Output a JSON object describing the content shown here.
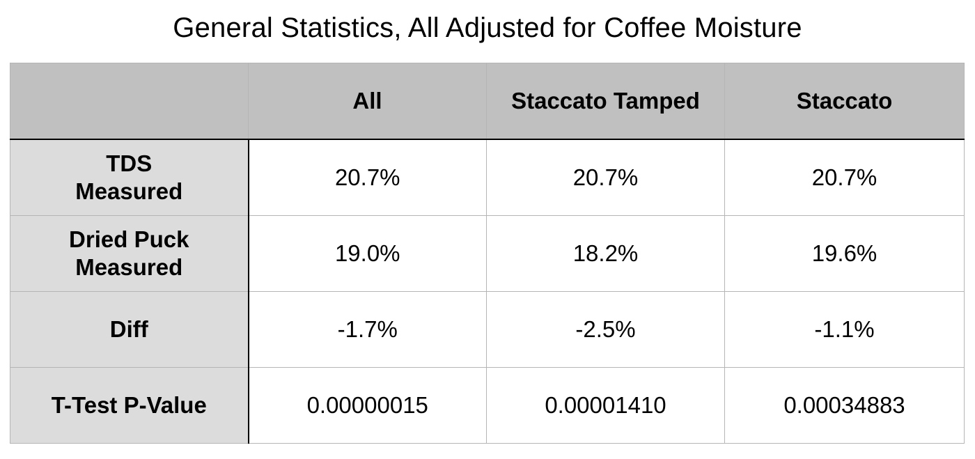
{
  "title": "General Statistics, All Adjusted for Coffee Moisture",
  "table": {
    "columns": [
      "",
      "All",
      "Staccato Tamped",
      "Staccato"
    ],
    "rows": [
      {
        "label_lines": [
          "TDS",
          "Measured"
        ],
        "values": [
          "20.7%",
          "20.7%",
          "20.7%"
        ]
      },
      {
        "label_lines": [
          "Dried Puck",
          "Measured"
        ],
        "values": [
          "19.0%",
          "18.2%",
          "19.6%"
        ]
      },
      {
        "label_lines": [
          "Diff"
        ],
        "values": [
          "-1.7%",
          "-2.5%",
          "-1.1%"
        ]
      },
      {
        "label_lines": [
          "T-Test P-Value"
        ],
        "values": [
          "0.00000015",
          "0.00001410",
          "0.00034883"
        ]
      }
    ]
  }
}
